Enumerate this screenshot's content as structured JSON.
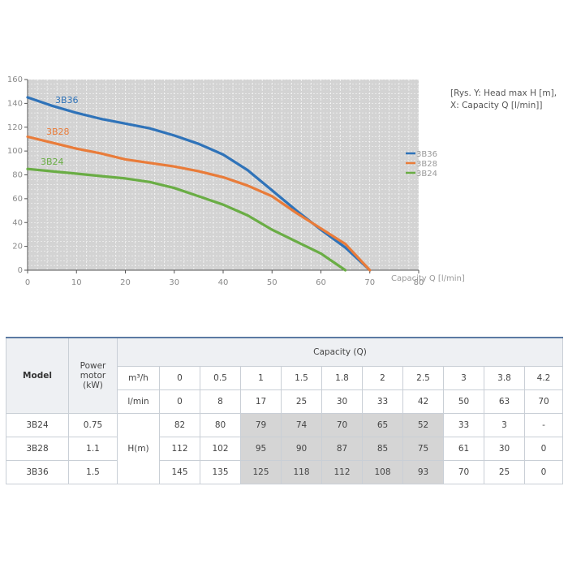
{
  "chart_data": {
    "type": "line",
    "xlabel": "Capacity Q [l/min]",
    "xlim": [
      0,
      80
    ],
    "ylim": [
      0,
      160
    ],
    "x_ticks": [
      "0",
      "10",
      "20",
      "30",
      "40",
      "50",
      "60",
      "70",
      "80"
    ],
    "y_ticks": [
      "0",
      "20",
      "40",
      "60",
      "80",
      "100",
      "120",
      "140",
      "160"
    ],
    "grid": true,
    "legend": "right",
    "series": [
      {
        "name": "3B36",
        "color": "#2f73b9",
        "points": [
          [
            0,
            145
          ],
          [
            5,
            138
          ],
          [
            10,
            132
          ],
          [
            15,
            127
          ],
          [
            20,
            123
          ],
          [
            25,
            119
          ],
          [
            30,
            113
          ],
          [
            35,
            106
          ],
          [
            40,
            97
          ],
          [
            45,
            84
          ],
          [
            50,
            67
          ],
          [
            55,
            50
          ],
          [
            60,
            34
          ],
          [
            65,
            19
          ],
          [
            70,
            0
          ]
        ]
      },
      {
        "name": "3B28",
        "color": "#e97c3a",
        "points": [
          [
            0,
            112
          ],
          [
            5,
            107
          ],
          [
            10,
            102
          ],
          [
            15,
            98
          ],
          [
            20,
            93
          ],
          [
            25,
            90
          ],
          [
            30,
            87
          ],
          [
            35,
            83
          ],
          [
            40,
            78
          ],
          [
            45,
            71
          ],
          [
            50,
            62
          ],
          [
            55,
            48
          ],
          [
            60,
            35
          ],
          [
            65,
            22
          ],
          [
            70,
            0
          ]
        ]
      },
      {
        "name": "3B24",
        "color": "#6aad45",
        "points": [
          [
            0,
            85
          ],
          [
            5,
            83
          ],
          [
            10,
            81
          ],
          [
            15,
            79
          ],
          [
            20,
            77
          ],
          [
            25,
            74
          ],
          [
            30,
            69
          ],
          [
            35,
            62
          ],
          [
            40,
            55
          ],
          [
            45,
            46
          ],
          [
            50,
            34
          ],
          [
            55,
            24
          ],
          [
            60,
            14
          ],
          [
            65,
            0
          ]
        ]
      }
    ]
  },
  "caption": {
    "line1": "[Rys. Y: Head max H [m],",
    "line2": "X: Capacity Q [l/min]]"
  },
  "table": {
    "model_header": "Model",
    "power_header": [
      "Power",
      "motor",
      "(kW)"
    ],
    "capacity_header": "Capacity (Q)",
    "unit_m3h": "m³/h",
    "unit_lmin": "l/min",
    "h_label": "H(m)",
    "m3h": [
      "0",
      "0.5",
      "1",
      "1.5",
      "1.8",
      "2",
      "2.5",
      "3",
      "3.8",
      "4.2"
    ],
    "lmin": [
      "0",
      "8",
      "17",
      "25",
      "30",
      "33",
      "42",
      "50",
      "63",
      "70"
    ],
    "rows": [
      {
        "model": "3B24",
        "power": "0.75",
        "values": [
          "82",
          "80",
          "79",
          "74",
          "70",
          "65",
          "52",
          "33",
          "3",
          "-"
        ]
      },
      {
        "model": "3B28",
        "power": "1.1",
        "values": [
          "112",
          "102",
          "95",
          "90",
          "87",
          "85",
          "75",
          "61",
          "30",
          "0"
        ]
      },
      {
        "model": "3B36",
        "power": "1.5",
        "values": [
          "145",
          "135",
          "125",
          "118",
          "112",
          "108",
          "93",
          "70",
          "25",
          "0"
        ]
      }
    ]
  }
}
